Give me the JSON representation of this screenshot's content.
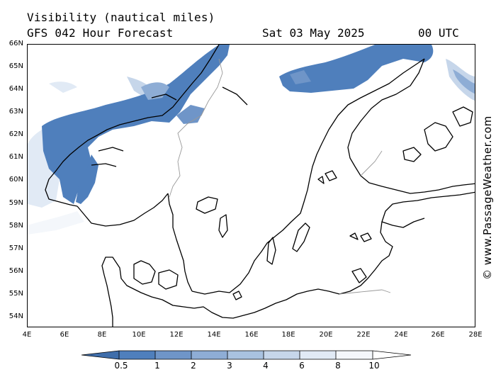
{
  "title": {
    "line1": "Visibility (nautical miles)",
    "line2": "GFS 042 Hour Forecast",
    "date": "Sat 03 May 2025",
    "time": "00 UTC"
  },
  "map": {
    "lat_labels": [
      "66N",
      "65N",
      "64N",
      "63N",
      "62N",
      "61N",
      "60N",
      "59N",
      "58N",
      "57N",
      "56N",
      "55N",
      "54N"
    ],
    "lon_labels": [
      "4E",
      "6E",
      "8E",
      "10E",
      "12E",
      "14E",
      "16E",
      "18E",
      "20E",
      "22E",
      "24E",
      "26E",
      "28E"
    ],
    "lat_range": [
      53.5,
      66
    ],
    "lon_range": [
      4,
      28
    ]
  },
  "legend": {
    "labels": [
      "0.5",
      "1",
      "2",
      "3",
      "4",
      "6",
      "8",
      "10"
    ],
    "colors": [
      "#3f6eab",
      "#4f7fbc",
      "#6f95c8",
      "#8eadd5",
      "#a9c2e0",
      "#c6d6ea",
      "#e1eaf5",
      "#f4f7fb",
      "#ffffff"
    ]
  },
  "watermark": "© www.PassageWeather.com"
}
